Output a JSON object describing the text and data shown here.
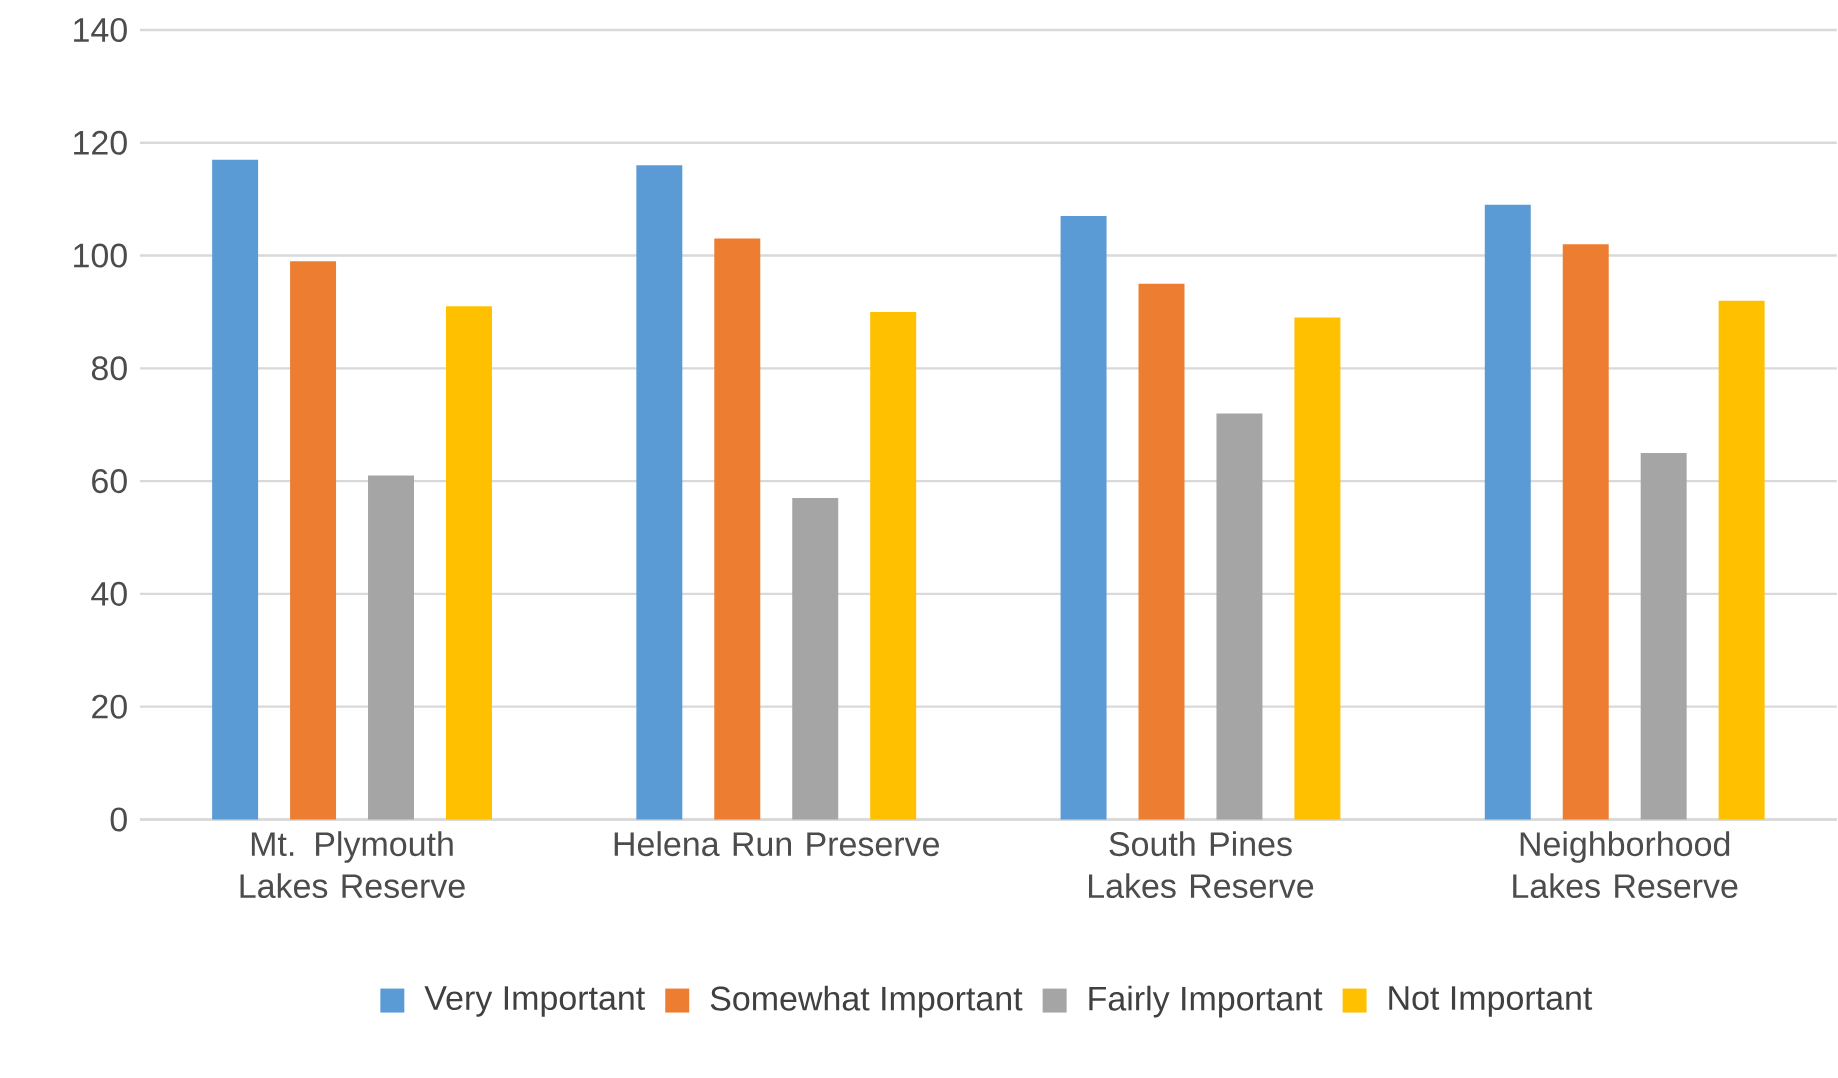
{
  "chart_data": {
    "type": "bar",
    "categories": [
      "Mt. Plymouth Lakes Reserve",
      "Helena Run Preserve",
      "South Pines Lakes Reserve",
      "Neighborhood Lakes Reserve"
    ],
    "series": [
      {
        "name": "Very Important",
        "color": "#5b9bd5",
        "values": [
          117,
          116,
          107,
          109
        ]
      },
      {
        "name": "Somewhat Important",
        "color": "#ed7d31",
        "values": [
          99,
          103,
          95,
          102
        ]
      },
      {
        "name": "Fairly Important",
        "color": "#a5a5a5",
        "values": [
          61,
          57,
          72,
          65
        ]
      },
      {
        "name": "Not Important",
        "color": "#ffc000",
        "values": [
          91,
          90,
          89,
          92
        ]
      }
    ],
    "ylim": [
      0,
      140
    ],
    "yticks": [
      0,
      20,
      40,
      60,
      80,
      100,
      120,
      140
    ],
    "grid": "y",
    "legend": "bottom"
  }
}
